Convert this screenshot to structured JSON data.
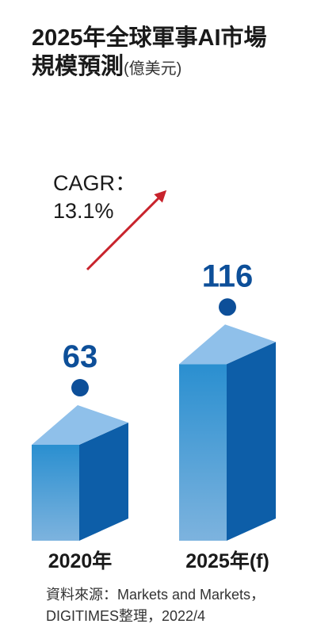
{
  "chart_data": {
    "type": "bar",
    "title": "2025年全球軍事AI市場",
    "title_line2": "規模預測",
    "unit": "(億美元)",
    "categories": [
      "2020年",
      "2025年(f)"
    ],
    "values": [
      63,
      116
    ],
    "value_labels": [
      "63",
      "116"
    ],
    "annotation": {
      "line1": "CAGR：",
      "line2": "13.1%"
    },
    "ylim": [
      0,
      120
    ],
    "grid": false,
    "colors": {
      "bar_front_top": "#2a8fd0",
      "bar_front_bottom": "#7db3de",
      "bar_side": "#0d5ea8",
      "bar_top": "#8fc0ea",
      "value_label": "#0d4f99",
      "dot": "#0d4f99",
      "arrow": "#c8232c",
      "text": "#1a1a1a"
    }
  },
  "source": {
    "line1": "資料來源：Markets and Markets，",
    "line2": "DIGITIMES整理，2022/4"
  }
}
